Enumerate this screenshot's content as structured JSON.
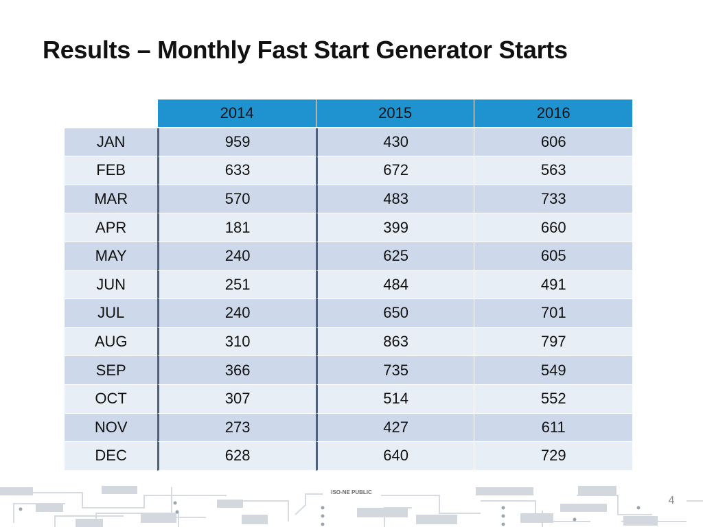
{
  "slide": {
    "title": "Results – Monthly Fast Start Generator Starts",
    "footer_label": "ISO-NE PUBLIC",
    "page_number": "4"
  },
  "table": {
    "columns": [
      "2014",
      "2015",
      "2016"
    ],
    "rows": [
      {
        "month": "JAN",
        "values": [
          "959",
          "430",
          "606"
        ]
      },
      {
        "month": "FEB",
        "values": [
          "633",
          "672",
          "563"
        ]
      },
      {
        "month": "MAR",
        "values": [
          "570",
          "483",
          "733"
        ]
      },
      {
        "month": "APR",
        "values": [
          "181",
          "399",
          "660"
        ]
      },
      {
        "month": "MAY",
        "values": [
          "240",
          "625",
          "605"
        ]
      },
      {
        "month": "JUN",
        "values": [
          "251",
          "484",
          "491"
        ]
      },
      {
        "month": "JUL",
        "values": [
          "240",
          "650",
          "701"
        ]
      },
      {
        "month": "AUG",
        "values": [
          "310",
          "863",
          "797"
        ]
      },
      {
        "month": "SEP",
        "values": [
          "366",
          "735",
          "549"
        ]
      },
      {
        "month": "OCT",
        "values": [
          "307",
          "514",
          "552"
        ]
      },
      {
        "month": "NOV",
        "values": [
          "273",
          "427",
          "611"
        ]
      },
      {
        "month": "DEC",
        "values": [
          "628",
          "640",
          "729"
        ]
      }
    ]
  },
  "colors": {
    "header_fill": "#1f93d0",
    "row_dark": "#cdd9ea",
    "row_light": "#e8eef6",
    "circuit": "#d3d8de"
  }
}
